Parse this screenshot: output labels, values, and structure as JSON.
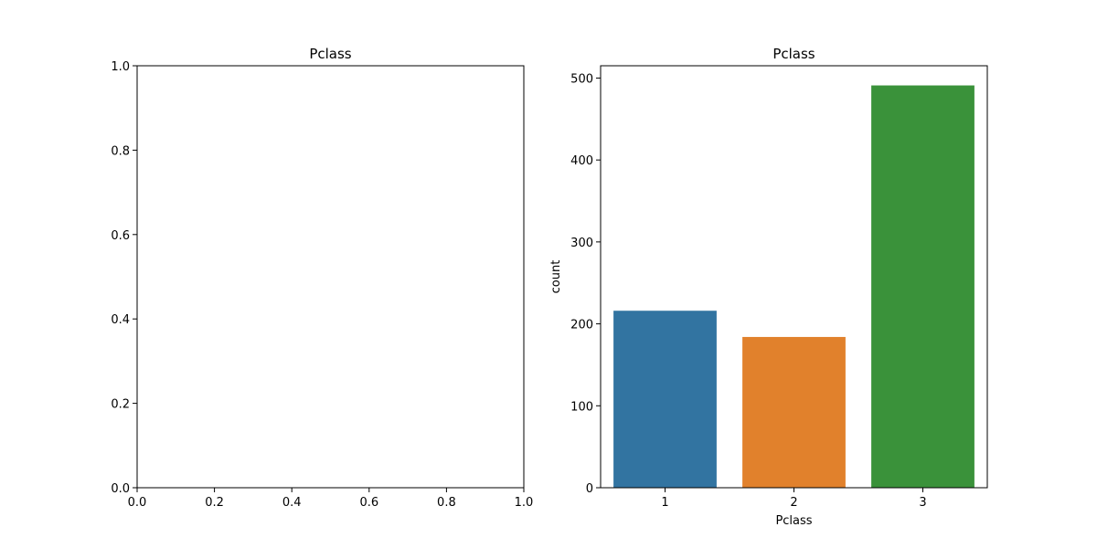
{
  "colors": {
    "background": "#ffffff",
    "axis": "#000000"
  },
  "chart_data": [
    {
      "type": "bar",
      "title": "Pclass",
      "xlabel": "",
      "ylabel": "",
      "categories": [],
      "values": [],
      "xlim": [
        0,
        1
      ],
      "ylim": [
        0,
        1
      ],
      "xticks": [
        "0.0",
        "0.2",
        "0.4",
        "0.6",
        "0.8",
        "1.0"
      ],
      "yticks": [
        "0.0",
        "0.2",
        "0.4",
        "0.6",
        "0.8",
        "1.0"
      ],
      "grid": false
    },
    {
      "type": "bar",
      "title": "Pclass",
      "xlabel": "Pclass",
      "ylabel": "count",
      "categories": [
        "1",
        "2",
        "3"
      ],
      "values": [
        216,
        184,
        491
      ],
      "colors": [
        "#3274a1",
        "#e1812c",
        "#3a923a"
      ],
      "ylim": [
        0,
        515
      ],
      "yticks": [
        "0",
        "100",
        "200",
        "300",
        "400",
        "500"
      ],
      "grid": false
    }
  ]
}
